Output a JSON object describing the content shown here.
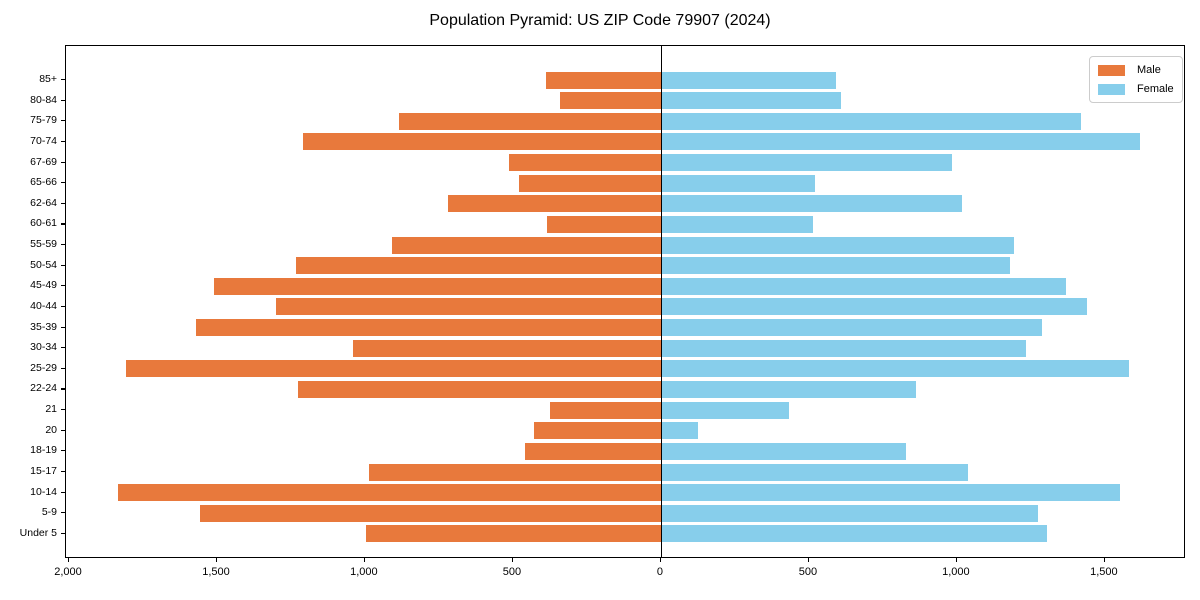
{
  "figure": {
    "background": "#ffffff"
  },
  "chart_data": {
    "type": "bar",
    "variant": "population-pyramid-horizontal",
    "title": "Population Pyramid: US ZIP Code 79907 (2024)",
    "categories": [
      "85+",
      "80-84",
      "75-79",
      "70-74",
      "67-69",
      "65-66",
      "62-64",
      "60-61",
      "55-59",
      "50-54",
      "45-49",
      "40-44",
      "35-39",
      "30-34",
      "25-29",
      "22-24",
      "21",
      "20",
      "18-19",
      "15-17",
      "10-14",
      "5-9",
      "Under 5"
    ],
    "series": [
      {
        "name": "Male",
        "side": "left",
        "color": "#e8793c",
        "values": [
          388,
          340,
          886,
          1210,
          515,
          480,
          720,
          385,
          910,
          1234,
          1510,
          1300,
          1572,
          1040,
          1808,
          1225,
          376,
          428,
          458,
          987,
          1835,
          1557,
          997
        ]
      },
      {
        "name": "Female",
        "side": "right",
        "color": "#87ceeb",
        "values": [
          591,
          609,
          1419,
          1620,
          984,
          520,
          1018,
          514,
          1193,
          1181,
          1369,
          1439,
          1288,
          1232,
          1580,
          861,
          434,
          125,
          829,
          1038,
          1550,
          1274,
          1306
        ]
      }
    ],
    "x_axis": {
      "range": [
        -2010,
        1774
      ],
      "ticks": [
        {
          "value": -2000,
          "label": "2,000"
        },
        {
          "value": -1500,
          "label": "1,500"
        },
        {
          "value": -1000,
          "label": "1,000"
        },
        {
          "value": -500,
          "label": "500"
        },
        {
          "value": 0,
          "label": "0"
        },
        {
          "value": 500,
          "label": "500"
        },
        {
          "value": 1000,
          "label": "1,000"
        },
        {
          "value": 1500,
          "label": "1,500"
        }
      ]
    },
    "center_line_value": 0,
    "grid": false,
    "legend": {
      "position": "upper-right"
    }
  }
}
